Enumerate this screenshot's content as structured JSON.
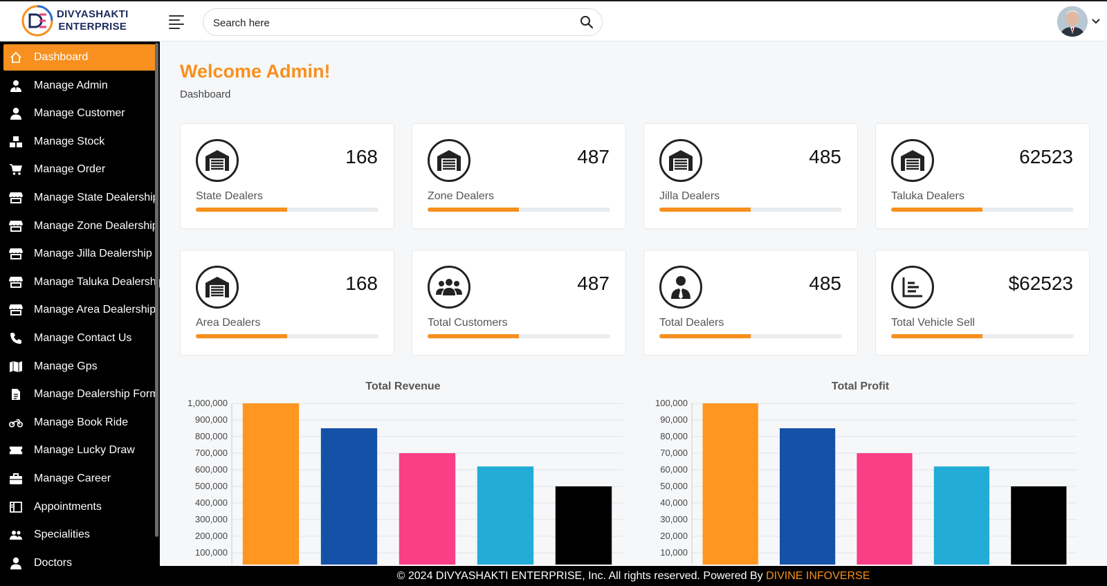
{
  "brand": {
    "line1": "DIVYASHAKTI",
    "line2": "ENTERPRISE"
  },
  "search": {
    "placeholder": "Search here"
  },
  "sidebar": {
    "items": [
      {
        "label": "Dashboard",
        "icon": "home-icon",
        "active": true
      },
      {
        "label": "Manage Admin",
        "icon": "user-tie-icon"
      },
      {
        "label": "Manage Customer",
        "icon": "user-icon"
      },
      {
        "label": "Manage Stock",
        "icon": "boxes-icon"
      },
      {
        "label": "Manage Order",
        "icon": "cart-icon"
      },
      {
        "label": "Manage State Dealership",
        "icon": "store-icon"
      },
      {
        "label": "Manage Zone Dealership",
        "icon": "store-icon"
      },
      {
        "label": "Manage Jilla Dealership",
        "icon": "store-icon"
      },
      {
        "label": "Manage Taluka Dealership",
        "icon": "store-icon"
      },
      {
        "label": "Manage Area Dealership",
        "icon": "store-icon"
      },
      {
        "label": "Manage Contact Us",
        "icon": "phone-icon"
      },
      {
        "label": "Manage Gps",
        "icon": "map-icon"
      },
      {
        "label": "Manage Dealership Form",
        "icon": "file-icon"
      },
      {
        "label": "Manage Book Ride",
        "icon": "motorcycle-icon"
      },
      {
        "label": "Manage Lucky Draw",
        "icon": "ticket-icon"
      },
      {
        "label": "Manage Career",
        "icon": "briefcase-icon"
      },
      {
        "label": "Appointments",
        "icon": "calendar-icon"
      },
      {
        "label": "Specialities",
        "icon": "group-icon"
      },
      {
        "label": "Doctors",
        "icon": "user-icon"
      }
    ]
  },
  "page": {
    "title": "Welcome Admin!",
    "breadcrumb": "Dashboard"
  },
  "cards": [
    {
      "value": "168",
      "label": "State Dealers",
      "icon": "warehouse-icon",
      "progress": 0.5
    },
    {
      "value": "487",
      "label": "Zone Dealers",
      "icon": "warehouse-icon",
      "progress": 0.5
    },
    {
      "value": "485",
      "label": "Jilla Dealers",
      "icon": "warehouse-icon",
      "progress": 0.5
    },
    {
      "value": "62523",
      "label": "Taluka Dealers",
      "icon": "warehouse-icon",
      "progress": 0.5
    },
    {
      "value": "168",
      "label": "Area Dealers",
      "icon": "warehouse-icon",
      "progress": 0.5
    },
    {
      "value": "487",
      "label": "Total Customers",
      "icon": "users-icon",
      "progress": 0.5
    },
    {
      "value": "485",
      "label": "Total Dealers",
      "icon": "user-tie-icon",
      "progress": 0.5
    },
    {
      "value": "$62523",
      "label": "Total Vehicle Sell",
      "icon": "chart-bar-icon",
      "progress": 0.5
    }
  ],
  "colors": {
    "accent": "#f7901e",
    "bars": [
      "#ff961f",
      "#1452a8",
      "#fa3f87",
      "#22acd6",
      "#000000"
    ]
  },
  "chart_data": [
    {
      "type": "bar",
      "title": "Total Revenue",
      "categories": [
        "",
        "",
        "",
        "",
        ""
      ],
      "values": [
        1000000,
        850000,
        700000,
        620000,
        500000
      ],
      "ylim": [
        0,
        1000000
      ],
      "yticks": [
        "1,000,000",
        "900,000",
        "800,000",
        "700,000",
        "600,000",
        "500,000",
        "400,000",
        "300,000",
        "200,000",
        "100,000"
      ],
      "grid": true
    },
    {
      "type": "bar",
      "title": "Total Profit",
      "categories": [
        "",
        "",
        "",
        "",
        ""
      ],
      "values": [
        100000,
        85000,
        70000,
        62000,
        50000
      ],
      "ylim": [
        0,
        100000
      ],
      "yticks": [
        "100,000",
        "90,000",
        "80,000",
        "70,000",
        "60,000",
        "50,000",
        "40,000",
        "30,000",
        "20,000",
        "10,000"
      ],
      "grid": true
    }
  ],
  "footer": {
    "text": "© 2024 DIVYASHAKTI ENTERPRISE, Inc. All rights reserved. Powered By ",
    "brand": "DIVINE INFOVERSE"
  }
}
